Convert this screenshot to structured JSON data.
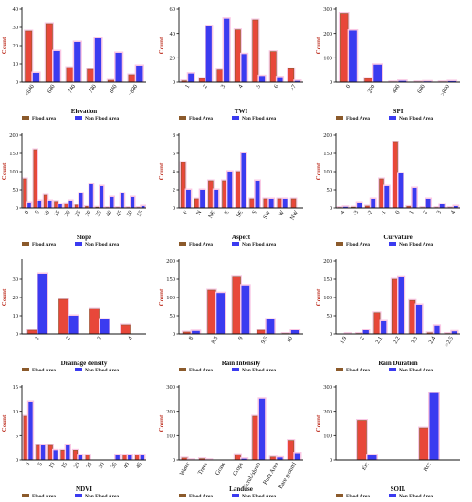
{
  "colors": {
    "flood": "#e8473a",
    "flood_edge": "#8b5a2b",
    "nonflood": "#3b3bf0",
    "halo": "#f9c7e4",
    "axis": "#111111"
  },
  "legend": {
    "flood": "Flood Area",
    "nonflood": "Non Flood Area"
  },
  "chart_data": [
    {
      "type": "bar",
      "xlabel": "Elevation",
      "ylabel": "Count",
      "ylim": [
        0,
        40
      ],
      "yticks": [
        0,
        10,
        20,
        30,
        40
      ],
      "categories": [
        "<640",
        "680",
        "740",
        "780",
        "840",
        ">880"
      ],
      "series": [
        {
          "name": "Flood Area",
          "values": [
            28,
            32,
            8,
            7,
            1,
            4
          ]
        },
        {
          "name": "Non Flood Area",
          "values": [
            5,
            17,
            22,
            24,
            16,
            9
          ]
        }
      ]
    },
    {
      "type": "bar",
      "xlabel": "TWI",
      "ylabel": "Count",
      "ylim": [
        0,
        60
      ],
      "yticks": [
        0,
        20,
        40,
        60
      ],
      "categories": [
        "1",
        "2",
        "3",
        "4",
        "5",
        "6",
        ">7"
      ],
      "series": [
        {
          "name": "Flood Area",
          "values": [
            1,
            3,
            10,
            43,
            51,
            25,
            11
          ]
        },
        {
          "name": "Non Flood Area",
          "values": [
            7,
            46,
            52,
            23,
            5,
            4,
            1
          ]
        }
      ]
    },
    {
      "type": "bar",
      "xlabel": "SPI",
      "ylabel": "Count",
      "ylim": [
        0,
        300
      ],
      "yticks": [
        0,
        100,
        200,
        300
      ],
      "categories": [
        "0",
        "200",
        "400",
        "600",
        ">800"
      ],
      "series": [
        {
          "name": "Flood Area",
          "values": [
            283,
            15,
            1,
            1,
            1
          ]
        },
        {
          "name": "Non Flood Area",
          "values": [
            212,
            72,
            5,
            3,
            4
          ]
        }
      ]
    },
    {
      "type": "bar",
      "xlabel": "Slope",
      "ylabel": "Count",
      "ylim": [
        0,
        200
      ],
      "yticks": [
        0,
        50,
        100,
        150,
        200
      ],
      "categories": [
        "0",
        "5",
        "10",
        "15",
        "20",
        "25",
        "30",
        "35",
        "40",
        "45",
        "50",
        "55"
      ],
      "series": [
        {
          "name": "Flood Area",
          "values": [
            80,
            160,
            35,
            18,
            12,
            8,
            4,
            2,
            1,
            1,
            1,
            1
          ]
        },
        {
          "name": "Non Flood Area",
          "values": [
            15,
            20,
            20,
            10,
            20,
            40,
            65,
            60,
            30,
            40,
            30,
            5
          ]
        }
      ]
    },
    {
      "type": "bar",
      "xlabel": "Aspect",
      "ylabel": "Count",
      "ylim": [
        0,
        8
      ],
      "yticks": [
        0,
        2,
        4,
        6,
        8
      ],
      "categories": [
        "F",
        "N",
        "NE",
        "E",
        "SE",
        "S",
        "SW",
        "W",
        "NW"
      ],
      "series": [
        {
          "name": "Flood Area",
          "values": [
            5,
            1,
            3,
            3,
            4,
            1,
            1,
            1,
            1
          ]
        },
        {
          "name": "Non Flood Area",
          "values": [
            2,
            2,
            2,
            4,
            6,
            3,
            1,
            1,
            0
          ]
        }
      ]
    },
    {
      "type": "bar",
      "xlabel": "Curvature",
      "ylabel": "Count",
      "ylim": [
        0,
        200
      ],
      "yticks": [
        0,
        50,
        100,
        150,
        200
      ],
      "categories": [
        "-4",
        "-3",
        "-2",
        "-1",
        "0",
        "1",
        "2",
        "3",
        "4"
      ],
      "series": [
        {
          "name": "Flood Area",
          "values": [
            1,
            2,
            5,
            80,
            180,
            4,
            1,
            1,
            1
          ]
        },
        {
          "name": "Non Flood Area",
          "values": [
            3,
            15,
            25,
            60,
            95,
            55,
            25,
            10,
            5
          ]
        }
      ]
    },
    {
      "type": "bar",
      "xlabel": "Drainage density",
      "ylabel": "Count",
      "ylim": [
        0,
        40
      ],
      "yticks": [
        0,
        10,
        20,
        30
      ],
      "categories": [
        "1",
        "2",
        "3",
        "4"
      ],
      "series": [
        {
          "name": "Flood Area",
          "values": [
            2,
            19,
            14,
            5
          ]
        },
        {
          "name": "Non Flood Area",
          "values": [
            33,
            10,
            8,
            0
          ]
        }
      ]
    },
    {
      "type": "bar",
      "xlabel": "Rain Intensity",
      "ylabel": "Count",
      "ylim": [
        0,
        200
      ],
      "yticks": [
        0,
        50,
        100,
        150,
        200
      ],
      "categories": [
        "8",
        "8.5",
        "9",
        "9.5",
        "10"
      ],
      "series": [
        {
          "name": "Flood Area",
          "values": [
            5,
            120,
            158,
            10,
            1
          ]
        },
        {
          "name": "Non Flood Area",
          "values": [
            8,
            112,
            133,
            40,
            10
          ]
        }
      ]
    },
    {
      "type": "bar",
      "xlabel": "Rain Duration",
      "ylabel": "Count",
      "ylim": [
        0,
        200
      ],
      "yticks": [
        0,
        50,
        100,
        150,
        200
      ],
      "categories": [
        "1.9",
        "2",
        "2.1",
        "2.2",
        "2.3",
        "2.4",
        ">2.5"
      ],
      "series": [
        {
          "name": "Flood Area",
          "values": [
            0,
            1,
            58,
            150,
            92,
            3,
            1
          ]
        },
        {
          "name": "Non Flood Area",
          "values": [
            1,
            10,
            35,
            157,
            80,
            23,
            7
          ]
        }
      ]
    },
    {
      "type": "bar",
      "xlabel": "NDVI",
      "ylabel": "Count",
      "ylim": [
        0,
        15
      ],
      "yticks": [
        0,
        5,
        10,
        15
      ],
      "categories": [
        "0",
        "5",
        "10",
        "15",
        "20",
        "25",
        "30",
        "35",
        "40",
        "45"
      ],
      "series": [
        {
          "name": "Flood Area",
          "values": [
            9,
            3,
            3,
            2,
            2,
            1,
            0,
            0,
            1,
            1
          ]
        },
        {
          "name": "Non Flood Area",
          "values": [
            12,
            3,
            2,
            3,
            1,
            0,
            0,
            1,
            1,
            1
          ]
        }
      ]
    },
    {
      "type": "bar",
      "xlabel": "Landuse",
      "ylabel": "Count",
      "ylim": [
        0,
        300
      ],
      "yticks": [
        0,
        100,
        200,
        300
      ],
      "categories": [
        "Water",
        "Trees",
        "Grass",
        "Crops",
        "Scrub/shrub",
        "Built Area",
        "Bare ground"
      ],
      "series": [
        {
          "name": "Flood Area",
          "values": [
            8,
            5,
            0,
            22,
            180,
            12,
            80
          ]
        },
        {
          "name": "Non Flood Area",
          "values": [
            1,
            1,
            0,
            5,
            252,
            10,
            28
          ]
        }
      ]
    },
    {
      "type": "bar",
      "xlabel": "SOIL",
      "ylabel": "Count",
      "ylim": [
        0,
        300
      ],
      "yticks": [
        0,
        100,
        200,
        300
      ],
      "categories": [
        "Eic",
        "Rcc"
      ],
      "series": [
        {
          "name": "Flood Area",
          "values": [
            163,
            131
          ]
        },
        {
          "name": "Non Flood Area",
          "values": [
            20,
            275
          ]
        }
      ]
    }
  ]
}
